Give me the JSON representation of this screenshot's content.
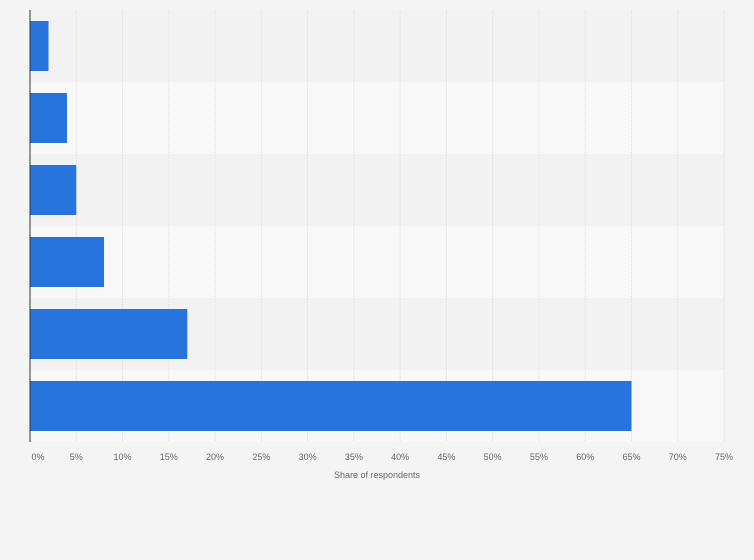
{
  "chart_data": {
    "type": "bar",
    "orientation": "horizontal",
    "title": "",
    "xlabel": "Share of respondents",
    "ylabel": "",
    "xlim": [
      0,
      75
    ],
    "x_ticks": [
      0,
      5,
      10,
      15,
      20,
      25,
      30,
      35,
      40,
      45,
      50,
      55,
      60,
      65,
      70,
      75
    ],
    "x_tick_labels": [
      "0%",
      "5%",
      "10%",
      "15%",
      "20%",
      "25%",
      "30%",
      "35%",
      "40%",
      "45%",
      "50%",
      "55%",
      "60%",
      "65%",
      "70%",
      "75%"
    ],
    "categories": [
      "",
      "",
      "",
      "",
      "",
      ""
    ],
    "values": [
      2,
      4,
      5,
      8,
      17,
      65
    ],
    "unit": "%",
    "grid": true,
    "legend": "none",
    "colors": {
      "bar": "#2775dc",
      "band_dark": "#f2f2f2",
      "band_light": "#f8f8f8",
      "grid": "#dddddd",
      "axis": "#333333",
      "text": "#666666"
    }
  }
}
